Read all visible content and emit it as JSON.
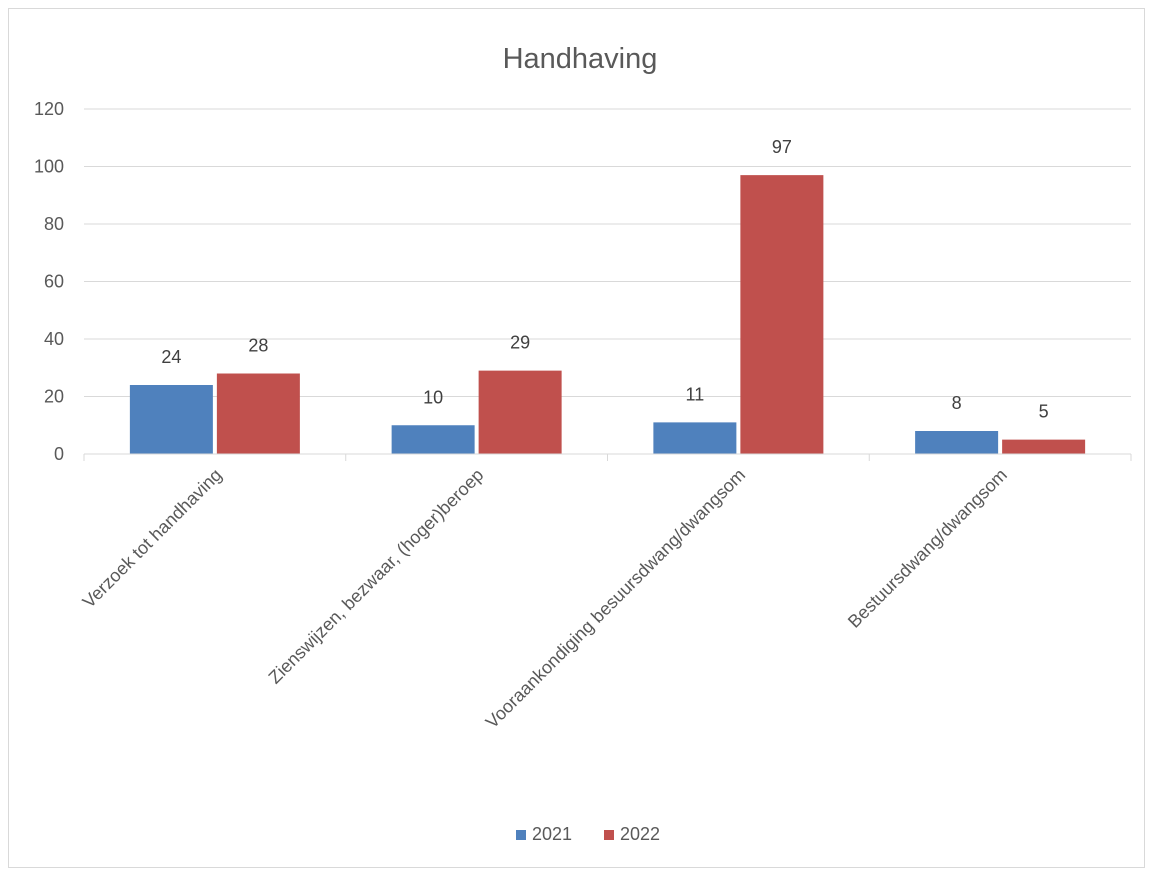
{
  "chart_data": {
    "type": "bar",
    "title": "Handhaving",
    "categories": [
      "Verzoek tot handhaving",
      "Zienswijzen, bezwaar, (hoger)beroep",
      "Vooraankondiging besuursdwang/dwangsom",
      "Bestuursdwang/dwangsom"
    ],
    "series": [
      {
        "name": "2021",
        "values": [
          24,
          10,
          11,
          8
        ],
        "color": "#4f81bd"
      },
      {
        "name": "2022",
        "values": [
          28,
          29,
          97,
          5
        ],
        "color": "#c0504d"
      }
    ],
    "ylim": [
      0,
      120
    ],
    "yticks": [
      0,
      20,
      40,
      60,
      80,
      100,
      120
    ],
    "grid": true,
    "legend": "bottom",
    "data_labels": true
  }
}
